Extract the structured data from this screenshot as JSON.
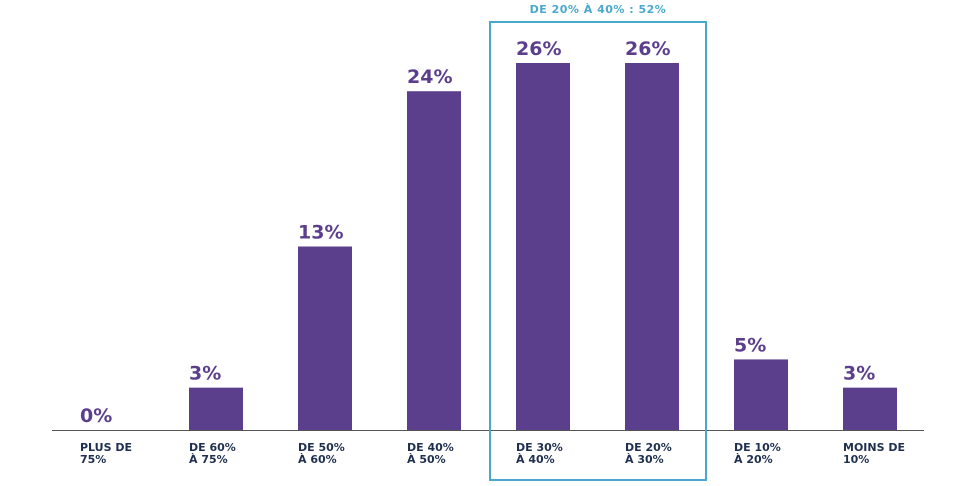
{
  "chart_data": {
    "type": "bar",
    "categories": [
      [
        "PLUS DE",
        "75%"
      ],
      [
        "DE 60%",
        "À 75%"
      ],
      [
        "DE 50%",
        "À 60%"
      ],
      [
        "DE 40%",
        "À 50%"
      ],
      [
        "DE 30%",
        "À 40%"
      ],
      [
        "DE 20%",
        "À 30%"
      ],
      [
        "DE 10%",
        "À 20%"
      ],
      [
        "MOINS DE",
        "10%"
      ]
    ],
    "values": [
      0,
      3,
      13,
      24,
      26,
      26,
      5,
      3
    ],
    "value_labels": [
      "0%",
      "3%",
      "13%",
      "24%",
      "26%",
      "26%",
      "5%",
      "3%"
    ],
    "ylim": [
      0,
      26
    ],
    "grid": false,
    "highlight": {
      "label": "DE 20% À 40% : 52%",
      "category_indices": [
        4,
        5
      ]
    }
  },
  "colors": {
    "bar": "#5b3f8c",
    "value_text": "#5b3f8c",
    "tick_text": "#1f2f4f",
    "highlight": "#4aa8cc",
    "axis": "#555555"
  }
}
